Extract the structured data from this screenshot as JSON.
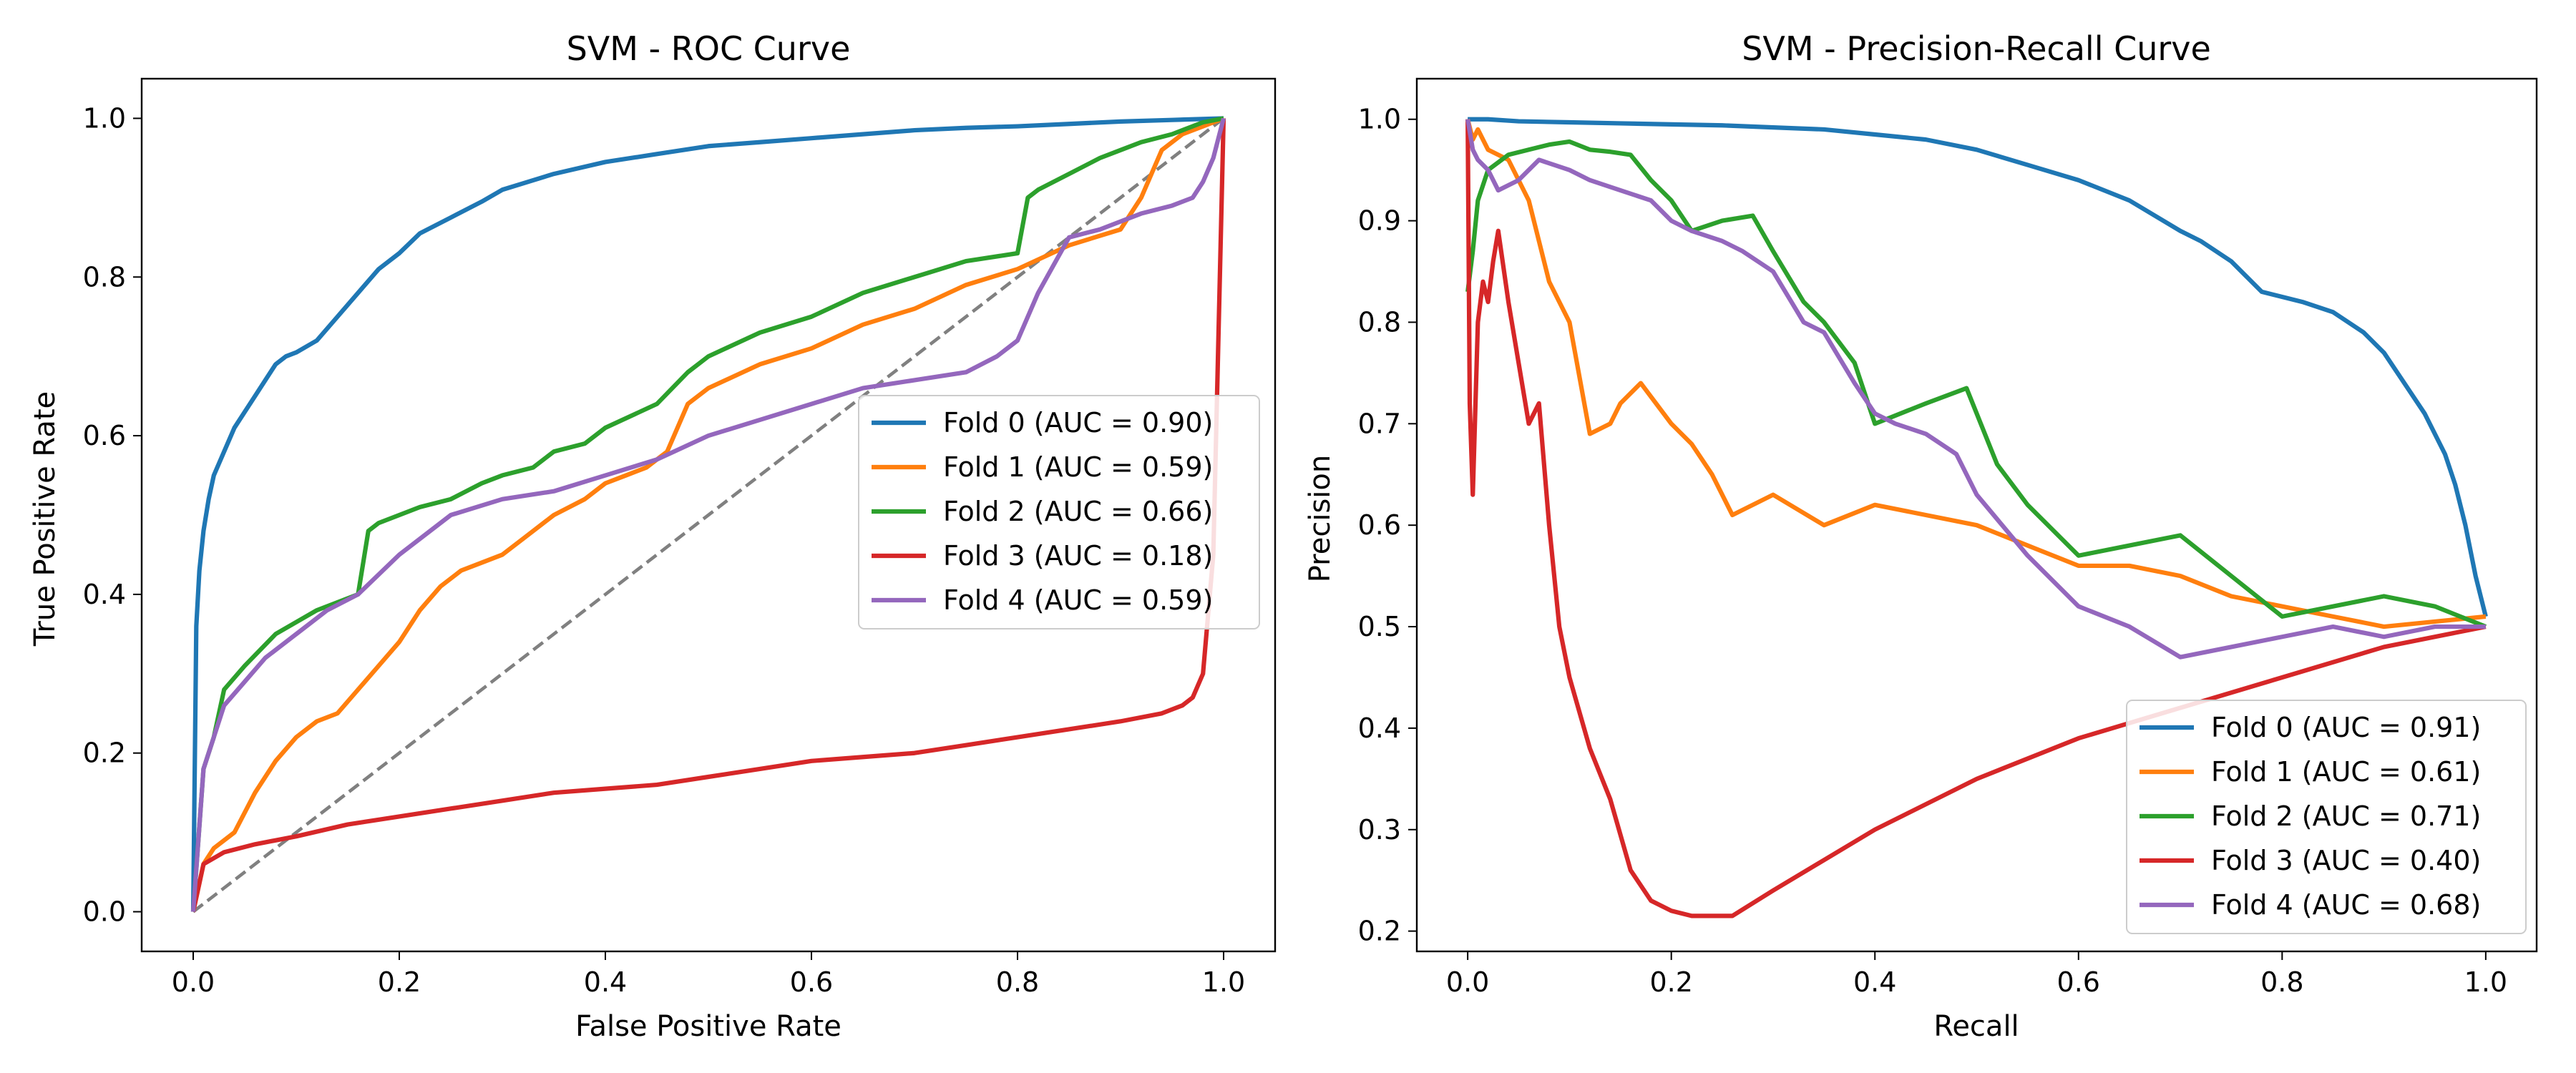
{
  "chart_data": [
    {
      "type": "line",
      "title": "SVM - ROC Curve",
      "xlabel": "False Positive Rate",
      "ylabel": "True Positive Rate",
      "xlim": [
        -0.05,
        1.05
      ],
      "ylim": [
        -0.05,
        1.05
      ],
      "xticks": [
        0.0,
        0.2,
        0.4,
        0.6,
        0.8,
        1.0
      ],
      "yticks": [
        0.0,
        0.2,
        0.4,
        0.6,
        0.8,
        1.0
      ],
      "xtick_labels": [
        "0.0",
        "0.2",
        "0.4",
        "0.6",
        "0.8",
        "1.0"
      ],
      "ytick_labels": [
        "0.0",
        "0.2",
        "0.4",
        "0.6",
        "0.8",
        "1.0"
      ],
      "grid": false,
      "legend_position": "center-right",
      "chance_line": {
        "style": "dashed",
        "color": "#808080",
        "x": [
          0.0,
          1.0
        ],
        "y": [
          0.0,
          1.0
        ]
      },
      "series": [
        {
          "name": "Fold 0 (AUC = 0.90)",
          "color": "#1f77b4",
          "x": [
            0.0,
            0.003,
            0.006,
            0.01,
            0.015,
            0.02,
            0.03,
            0.04,
            0.05,
            0.06,
            0.07,
            0.08,
            0.09,
            0.1,
            0.12,
            0.14,
            0.16,
            0.18,
            0.2,
            0.22,
            0.25,
            0.28,
            0.3,
            0.35,
            0.4,
            0.45,
            0.5,
            0.55,
            0.6,
            0.65,
            0.7,
            0.75,
            0.8,
            0.85,
            0.9,
            0.95,
            1.0
          ],
          "y": [
            0.0,
            0.36,
            0.43,
            0.48,
            0.52,
            0.55,
            0.58,
            0.61,
            0.63,
            0.65,
            0.67,
            0.69,
            0.7,
            0.705,
            0.72,
            0.75,
            0.78,
            0.81,
            0.83,
            0.855,
            0.875,
            0.895,
            0.91,
            0.93,
            0.945,
            0.955,
            0.965,
            0.97,
            0.975,
            0.98,
            0.985,
            0.988,
            0.99,
            0.993,
            0.996,
            0.998,
            1.0
          ]
        },
        {
          "name": "Fold 1 (AUC = 0.59)",
          "color": "#ff7f0e",
          "x": [
            0.0,
            0.01,
            0.02,
            0.04,
            0.06,
            0.08,
            0.1,
            0.12,
            0.14,
            0.16,
            0.18,
            0.2,
            0.22,
            0.24,
            0.26,
            0.28,
            0.3,
            0.32,
            0.35,
            0.38,
            0.4,
            0.42,
            0.44,
            0.46,
            0.48,
            0.5,
            0.55,
            0.6,
            0.65,
            0.7,
            0.75,
            0.8,
            0.85,
            0.9,
            0.92,
            0.94,
            0.96,
            0.98,
            1.0
          ],
          "y": [
            0.0,
            0.06,
            0.08,
            0.1,
            0.15,
            0.19,
            0.22,
            0.24,
            0.25,
            0.28,
            0.31,
            0.34,
            0.38,
            0.41,
            0.43,
            0.44,
            0.45,
            0.47,
            0.5,
            0.52,
            0.54,
            0.55,
            0.56,
            0.58,
            0.64,
            0.66,
            0.69,
            0.71,
            0.74,
            0.76,
            0.79,
            0.81,
            0.84,
            0.86,
            0.9,
            0.96,
            0.98,
            0.99,
            1.0
          ]
        },
        {
          "name": "Fold 2 (AUC = 0.66)",
          "color": "#2ca02c",
          "x": [
            0.0,
            0.01,
            0.02,
            0.03,
            0.05,
            0.08,
            0.12,
            0.16,
            0.17,
            0.18,
            0.2,
            0.22,
            0.25,
            0.28,
            0.3,
            0.33,
            0.35,
            0.38,
            0.4,
            0.45,
            0.48,
            0.5,
            0.55,
            0.6,
            0.65,
            0.7,
            0.75,
            0.8,
            0.81,
            0.82,
            0.85,
            0.88,
            0.9,
            0.92,
            0.95,
            0.98,
            1.0
          ],
          "y": [
            0.0,
            0.18,
            0.22,
            0.28,
            0.31,
            0.35,
            0.38,
            0.4,
            0.48,
            0.49,
            0.5,
            0.51,
            0.52,
            0.54,
            0.55,
            0.56,
            0.58,
            0.59,
            0.61,
            0.64,
            0.68,
            0.7,
            0.73,
            0.75,
            0.78,
            0.8,
            0.82,
            0.83,
            0.9,
            0.91,
            0.93,
            0.95,
            0.96,
            0.97,
            0.98,
            0.995,
            1.0
          ]
        },
        {
          "name": "Fold 3 (AUC = 0.18)",
          "color": "#d62728",
          "x": [
            0.0,
            0.01,
            0.03,
            0.06,
            0.1,
            0.15,
            0.2,
            0.25,
            0.3,
            0.35,
            0.4,
            0.45,
            0.5,
            0.55,
            0.6,
            0.65,
            0.7,
            0.75,
            0.8,
            0.85,
            0.9,
            0.94,
            0.96,
            0.97,
            0.98,
            0.99,
            1.0
          ],
          "y": [
            0.0,
            0.06,
            0.075,
            0.085,
            0.095,
            0.11,
            0.12,
            0.13,
            0.14,
            0.15,
            0.155,
            0.16,
            0.17,
            0.18,
            0.19,
            0.195,
            0.2,
            0.21,
            0.22,
            0.23,
            0.24,
            0.25,
            0.26,
            0.27,
            0.3,
            0.45,
            1.0
          ]
        },
        {
          "name": "Fold 4 (AUC = 0.59)",
          "color": "#9467bd",
          "x": [
            0.0,
            0.01,
            0.02,
            0.03,
            0.05,
            0.07,
            0.1,
            0.13,
            0.16,
            0.2,
            0.25,
            0.3,
            0.35,
            0.4,
            0.45,
            0.5,
            0.55,
            0.6,
            0.65,
            0.7,
            0.75,
            0.78,
            0.8,
            0.82,
            0.85,
            0.88,
            0.9,
            0.92,
            0.95,
            0.97,
            0.98,
            0.99,
            1.0
          ],
          "y": [
            0.0,
            0.18,
            0.22,
            0.26,
            0.29,
            0.32,
            0.35,
            0.38,
            0.4,
            0.45,
            0.5,
            0.52,
            0.53,
            0.55,
            0.57,
            0.6,
            0.62,
            0.64,
            0.66,
            0.67,
            0.68,
            0.7,
            0.72,
            0.78,
            0.85,
            0.86,
            0.87,
            0.88,
            0.89,
            0.9,
            0.92,
            0.95,
            1.0
          ]
        }
      ]
    },
    {
      "type": "line",
      "title": "SVM - Precision-Recall Curve",
      "xlabel": "Recall",
      "ylabel": "Precision",
      "xlim": [
        -0.05,
        1.05
      ],
      "ylim": [
        0.18,
        1.04
      ],
      "xticks": [
        0.0,
        0.2,
        0.4,
        0.6,
        0.8,
        1.0
      ],
      "yticks": [
        0.2,
        0.3,
        0.4,
        0.5,
        0.6,
        0.7,
        0.8,
        0.9,
        1.0
      ],
      "xtick_labels": [
        "0.0",
        "0.2",
        "0.4",
        "0.6",
        "0.8",
        "1.0"
      ],
      "ytick_labels": [
        "0.2",
        "0.3",
        "0.4",
        "0.5",
        "0.6",
        "0.7",
        "0.8",
        "0.9",
        "1.0"
      ],
      "grid": false,
      "legend_position": "lower-right",
      "series": [
        {
          "name": "Fold 0 (AUC = 0.91)",
          "color": "#1f77b4",
          "x": [
            0.0,
            0.02,
            0.05,
            0.1,
            0.15,
            0.2,
            0.25,
            0.3,
            0.35,
            0.4,
            0.45,
            0.5,
            0.55,
            0.6,
            0.65,
            0.7,
            0.72,
            0.75,
            0.78,
            0.8,
            0.82,
            0.85,
            0.88,
            0.9,
            0.92,
            0.94,
            0.96,
            0.97,
            0.98,
            0.99,
            1.0
          ],
          "y": [
            1.0,
            1.0,
            0.998,
            0.997,
            0.996,
            0.995,
            0.994,
            0.992,
            0.99,
            0.985,
            0.98,
            0.97,
            0.955,
            0.94,
            0.92,
            0.89,
            0.88,
            0.86,
            0.83,
            0.825,
            0.82,
            0.81,
            0.79,
            0.77,
            0.74,
            0.71,
            0.67,
            0.64,
            0.6,
            0.55,
            0.51
          ]
        },
        {
          "name": "Fold 1 (AUC = 0.61)",
          "color": "#ff7f0e",
          "x": [
            0.0,
            0.005,
            0.01,
            0.02,
            0.04,
            0.06,
            0.08,
            0.1,
            0.12,
            0.14,
            0.15,
            0.17,
            0.2,
            0.22,
            0.24,
            0.26,
            0.3,
            0.35,
            0.4,
            0.45,
            0.5,
            0.55,
            0.6,
            0.65,
            0.7,
            0.75,
            0.8,
            0.85,
            0.9,
            0.95,
            1.0
          ],
          "y": [
            1.0,
            0.98,
            0.99,
            0.97,
            0.96,
            0.92,
            0.84,
            0.8,
            0.69,
            0.7,
            0.72,
            0.74,
            0.7,
            0.68,
            0.65,
            0.61,
            0.63,
            0.6,
            0.62,
            0.61,
            0.6,
            0.58,
            0.56,
            0.56,
            0.55,
            0.53,
            0.52,
            0.51,
            0.5,
            0.505,
            0.51
          ]
        },
        {
          "name": "Fold 2 (AUC = 0.71)",
          "color": "#2ca02c",
          "x": [
            0.0,
            0.005,
            0.01,
            0.02,
            0.04,
            0.06,
            0.08,
            0.1,
            0.12,
            0.14,
            0.16,
            0.18,
            0.2,
            0.22,
            0.25,
            0.28,
            0.3,
            0.33,
            0.35,
            0.38,
            0.4,
            0.45,
            0.49,
            0.52,
            0.55,
            0.6,
            0.65,
            0.7,
            0.75,
            0.8,
            0.85,
            0.9,
            0.95,
            1.0
          ],
          "y": [
            0.83,
            0.87,
            0.92,
            0.95,
            0.965,
            0.97,
            0.975,
            0.978,
            0.97,
            0.968,
            0.965,
            0.94,
            0.92,
            0.89,
            0.9,
            0.905,
            0.87,
            0.82,
            0.8,
            0.76,
            0.7,
            0.72,
            0.735,
            0.66,
            0.62,
            0.57,
            0.58,
            0.59,
            0.55,
            0.51,
            0.52,
            0.53,
            0.52,
            0.5
          ]
        },
        {
          "name": "Fold 3 (AUC = 0.40)",
          "color": "#d62728",
          "x": [
            0.0,
            0.002,
            0.005,
            0.01,
            0.015,
            0.02,
            0.025,
            0.03,
            0.04,
            0.05,
            0.06,
            0.07,
            0.08,
            0.09,
            0.1,
            0.12,
            0.14,
            0.16,
            0.18,
            0.2,
            0.22,
            0.24,
            0.26,
            0.3,
            0.4,
            0.5,
            0.6,
            0.7,
            0.8,
            0.9,
            1.0
          ],
          "y": [
            1.0,
            0.72,
            0.63,
            0.8,
            0.84,
            0.82,
            0.86,
            0.89,
            0.82,
            0.76,
            0.7,
            0.72,
            0.6,
            0.5,
            0.45,
            0.38,
            0.33,
            0.26,
            0.23,
            0.22,
            0.215,
            0.215,
            0.215,
            0.24,
            0.3,
            0.35,
            0.39,
            0.42,
            0.45,
            0.48,
            0.5
          ]
        },
        {
          "name": "Fold 4 (AUC = 0.68)",
          "color": "#9467bd",
          "x": [
            0.0,
            0.005,
            0.01,
            0.02,
            0.03,
            0.05,
            0.07,
            0.1,
            0.12,
            0.15,
            0.18,
            0.2,
            0.22,
            0.25,
            0.27,
            0.3,
            0.33,
            0.35,
            0.38,
            0.4,
            0.42,
            0.45,
            0.48,
            0.5,
            0.55,
            0.6,
            0.65,
            0.7,
            0.75,
            0.8,
            0.85,
            0.9,
            0.95,
            1.0
          ],
          "y": [
            1.0,
            0.97,
            0.96,
            0.95,
            0.93,
            0.94,
            0.96,
            0.95,
            0.94,
            0.93,
            0.92,
            0.9,
            0.89,
            0.88,
            0.87,
            0.85,
            0.8,
            0.79,
            0.74,
            0.71,
            0.7,
            0.69,
            0.67,
            0.63,
            0.57,
            0.52,
            0.5,
            0.47,
            0.48,
            0.49,
            0.5,
            0.49,
            0.5,
            0.5
          ]
        }
      ]
    }
  ]
}
